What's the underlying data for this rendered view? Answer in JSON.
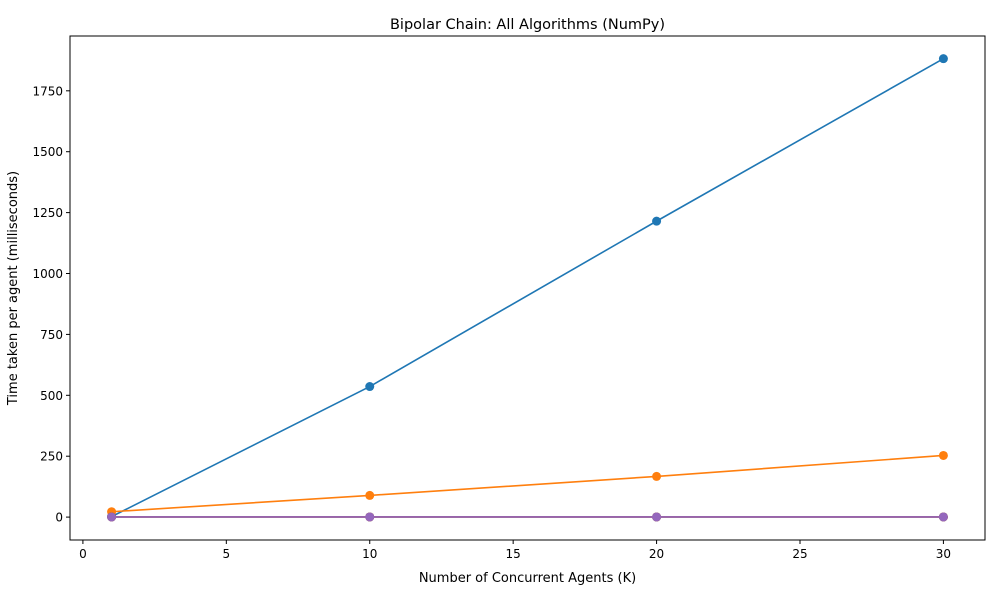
{
  "chart_data": {
    "type": "line",
    "title": "Bipolar Chain: All Algorithms (NumPy)",
    "xlabel": "Number of Concurrent Agents (K)",
    "ylabel": "Time taken per agent (milliseconds)",
    "x": [
      1,
      10,
      20,
      30
    ],
    "xlim": [
      -0.45,
      31.45
    ],
    "ylim": [
      -94,
      1975
    ],
    "xticks": [
      0,
      5,
      10,
      15,
      20,
      25,
      30
    ],
    "yticks": [
      0,
      250,
      500,
      750,
      1000,
      1250,
      1500,
      1750
    ],
    "grid": false,
    "series": [
      {
        "color": "#1f77b4",
        "values": [
          2,
          536,
          1215,
          1882
        ]
      },
      {
        "color": "#ff7f0e",
        "values": [
          22,
          89,
          167,
          253
        ]
      },
      {
        "color": "#2ca02c",
        "values": [
          0.5,
          0.5,
          0.5,
          0.5
        ]
      },
      {
        "color": "#d62728",
        "values": [
          0.5,
          0.5,
          0.5,
          0.5
        ]
      },
      {
        "color": "#9467bd",
        "values": [
          0.5,
          0.5,
          0.5,
          0.5
        ]
      }
    ]
  }
}
